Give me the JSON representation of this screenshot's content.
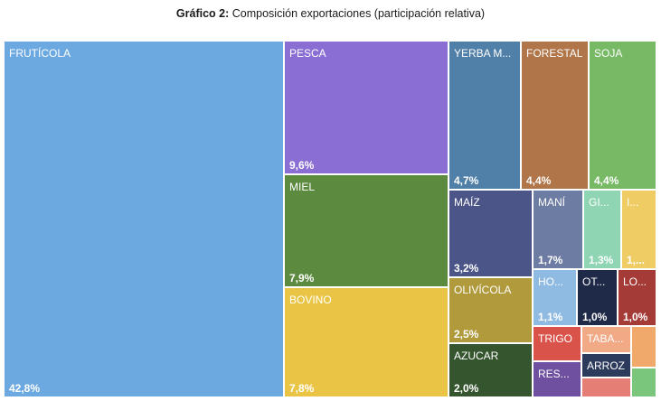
{
  "title": {
    "lead": "Gráfico 2:",
    "text": "Composición exportaciones (participación relativa)"
  },
  "chart_data": {
    "type": "treemap",
    "unit": "%",
    "items": [
      {
        "label": "FRUTÍCOLA",
        "value": 42.8,
        "value_label": "42,8%",
        "color": "#6CA9E0"
      },
      {
        "label": "PESCA",
        "value": 9.6,
        "value_label": "9,6%",
        "color": "#8B6ED3"
      },
      {
        "label": "MIEL",
        "value": 7.9,
        "value_label": "7,9%",
        "color": "#5C8A3F"
      },
      {
        "label": "BOVINO",
        "value": 7.8,
        "value_label": "7,8%",
        "color": "#EAC545"
      },
      {
        "label": "YERBA M...",
        "value": 4.7,
        "value_label": "4,7%",
        "color": "#507FA8"
      },
      {
        "label": "FORESTAL",
        "value": 4.4,
        "value_label": "4,4%",
        "color": "#B07548"
      },
      {
        "label": "SOJA",
        "value": 4.4,
        "value_label": "4,4%",
        "color": "#77B964"
      },
      {
        "label": "MAÍZ",
        "value": 3.2,
        "value_label": "3,2%",
        "color": "#4B5588"
      },
      {
        "label": "OLIVÍCOLA",
        "value": 2.5,
        "value_label": "2,5%",
        "color": "#B09A3C"
      },
      {
        "label": "AZUCAR",
        "value": 2.0,
        "value_label": "2,0%",
        "color": "#35552F"
      },
      {
        "label": "MANÍ",
        "value": 1.7,
        "value_label": "1,7%",
        "color": "#6D7CA3"
      },
      {
        "label": "GI...",
        "value": 1.3,
        "value_label": "1,3%",
        "color": "#8FD5B3"
      },
      {
        "label": "I...",
        "value": 1.2,
        "value_label": "1,...",
        "color": "#F0CC65"
      },
      {
        "label": "HO...",
        "value": 1.1,
        "value_label": "1,1%",
        "color": "#8FBBE3"
      },
      {
        "label": "OT...",
        "value": 1.0,
        "value_label": "1,0%",
        "color": "#1F2A48"
      },
      {
        "label": "LO...",
        "value": 1.0,
        "value_label": "1,0%",
        "color": "#A53B36"
      },
      {
        "label": "TRIGO",
        "value": 0.8,
        "value_label": "",
        "color": "#D9534A"
      },
      {
        "label": "TABA...",
        "value": 0.7,
        "value_label": "",
        "color": "#F2A985"
      },
      {
        "label": "RES...",
        "value": 0.6,
        "value_label": "",
        "color": "#6E4FA0"
      },
      {
        "label": "ARROZ",
        "value": 0.6,
        "value_label": "",
        "color": "#2C3A5C"
      },
      {
        "label": "",
        "value": 0.3,
        "value_label": "",
        "color": "#F1A96B"
      },
      {
        "label": "",
        "value": 0.3,
        "value_label": "",
        "color": "#E57F75"
      },
      {
        "label": "",
        "value": 0.2,
        "value_label": "",
        "color": "#7BC67D"
      }
    ]
  }
}
